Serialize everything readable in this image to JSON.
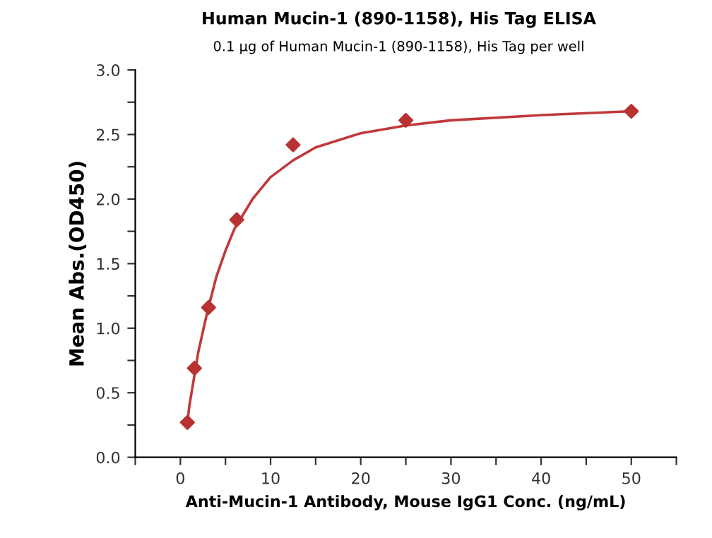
{
  "chart_data": {
    "type": "scatter",
    "title": "Human Mucin-1 (890-1158), His Tag ELISA",
    "subtitle": "0.1 µg of Human Mucin-1 (890-1158), His Tag per well",
    "xlabel": "Anti-Mucin-1 Antibody, Mouse IgG1 Conc. (ng/mL)",
    "ylabel": "Mean Abs.(OD450)",
    "series": [
      {
        "color": "#b83232",
        "marker": "diamond",
        "x": [
          0.78,
          1.56,
          3.125,
          6.25,
          12.5,
          25,
          50
        ],
        "values": [
          0.27,
          0.69,
          1.16,
          1.84,
          2.42,
          2.61,
          2.68
        ]
      },
      {
        "type": "line",
        "color": "#c0393b",
        "marker": "none",
        "x": [
          0.78,
          1,
          2,
          3,
          4,
          5,
          6,
          8,
          10,
          12.5,
          15,
          20,
          25,
          30,
          40,
          50
        ],
        "values": [
          0.27,
          0.4,
          0.82,
          1.13,
          1.4,
          1.6,
          1.77,
          2.0,
          2.17,
          2.3,
          2.4,
          2.51,
          2.57,
          2.61,
          2.65,
          2.68
        ]
      }
    ],
    "xlim": [
      -5,
      55
    ],
    "ylim": [
      0,
      3
    ],
    "xticks": [
      {
        "value": -5,
        "label": null
      },
      0,
      {
        "value": 5,
        "label": null
      },
      10,
      {
        "value": 15,
        "label": null
      },
      20,
      {
        "value": 25,
        "label": null
      },
      30,
      {
        "value": 35,
        "label": null
      },
      40,
      {
        "value": 45,
        "label": null
      },
      50,
      {
        "value": 55,
        "label": null
      }
    ],
    "yticks": [
      {
        "value": 0,
        "label": "0.0"
      },
      {
        "value": 0.25,
        "label": null
      },
      {
        "value": 0.5,
        "label": "0.5"
      },
      {
        "value": 0.75,
        "label": null
      },
      {
        "value": 1,
        "label": "1.0"
      },
      {
        "value": 1.25,
        "label": null
      },
      {
        "value": 1.5,
        "label": "1.5"
      },
      {
        "value": 1.75,
        "label": null
      },
      {
        "value": 2,
        "label": "2.0"
      },
      {
        "value": 2.25,
        "label": null
      },
      {
        "value": 2.5,
        "label": "2.5"
      },
      {
        "value": 2.75,
        "label": null
      },
      {
        "value": 3,
        "label": "3.0"
      }
    ]
  }
}
